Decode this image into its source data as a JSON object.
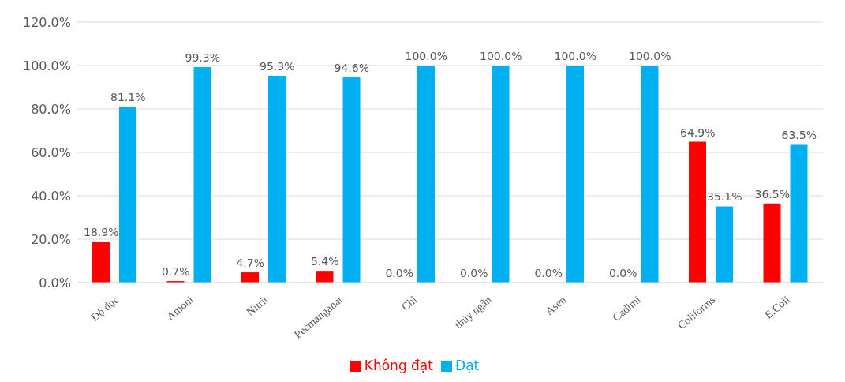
{
  "chart_data": {
    "type": "bar",
    "categories": [
      "Độ đục",
      "Amoni",
      "Nitrit",
      "Pecmanganat",
      "Chì",
      "thủy ngân",
      "Asen",
      "Cadimi",
      "Coliforms",
      "E.Coli"
    ],
    "series": [
      {
        "name": "Không đạt",
        "color": "#ff0000",
        "values": [
          18.9,
          0.7,
          4.7,
          5.4,
          0,
          0,
          0,
          0,
          64.9,
          36.5
        ],
        "value_labels": [
          "18.9%",
          "0.7%",
          "4.7%",
          "5.4%",
          "0.0%",
          "0.0%",
          "0.0%",
          "0.0%",
          "64.9%",
          "36.5%"
        ]
      },
      {
        "name": "Đạt",
        "color": "#00b0f0",
        "values": [
          81.1,
          99.3,
          95.3,
          94.6,
          100,
          100,
          100,
          100,
          35.1,
          63.5
        ],
        "value_labels": [
          "81.1%",
          "99.3%",
          "95.3%",
          "94.6%",
          "100.0%",
          "100.0%",
          "100.0%",
          "100.0%",
          "35.1%",
          "63.5%"
        ]
      }
    ],
    "ylim": [
      0,
      120
    ],
    "yticks": [
      {
        "value": 0,
        "label": "0.0%"
      },
      {
        "value": 20,
        "label": "20.0%"
      },
      {
        "value": 40,
        "label": "40.0%"
      },
      {
        "value": 60,
        "label": "60.0%"
      },
      {
        "value": 80,
        "label": "80.0%"
      },
      {
        "value": 100,
        "label": "100.0%"
      },
      {
        "value": 120,
        "label": "120.0%"
      }
    ],
    "grid": "y",
    "legend": "bottom"
  }
}
